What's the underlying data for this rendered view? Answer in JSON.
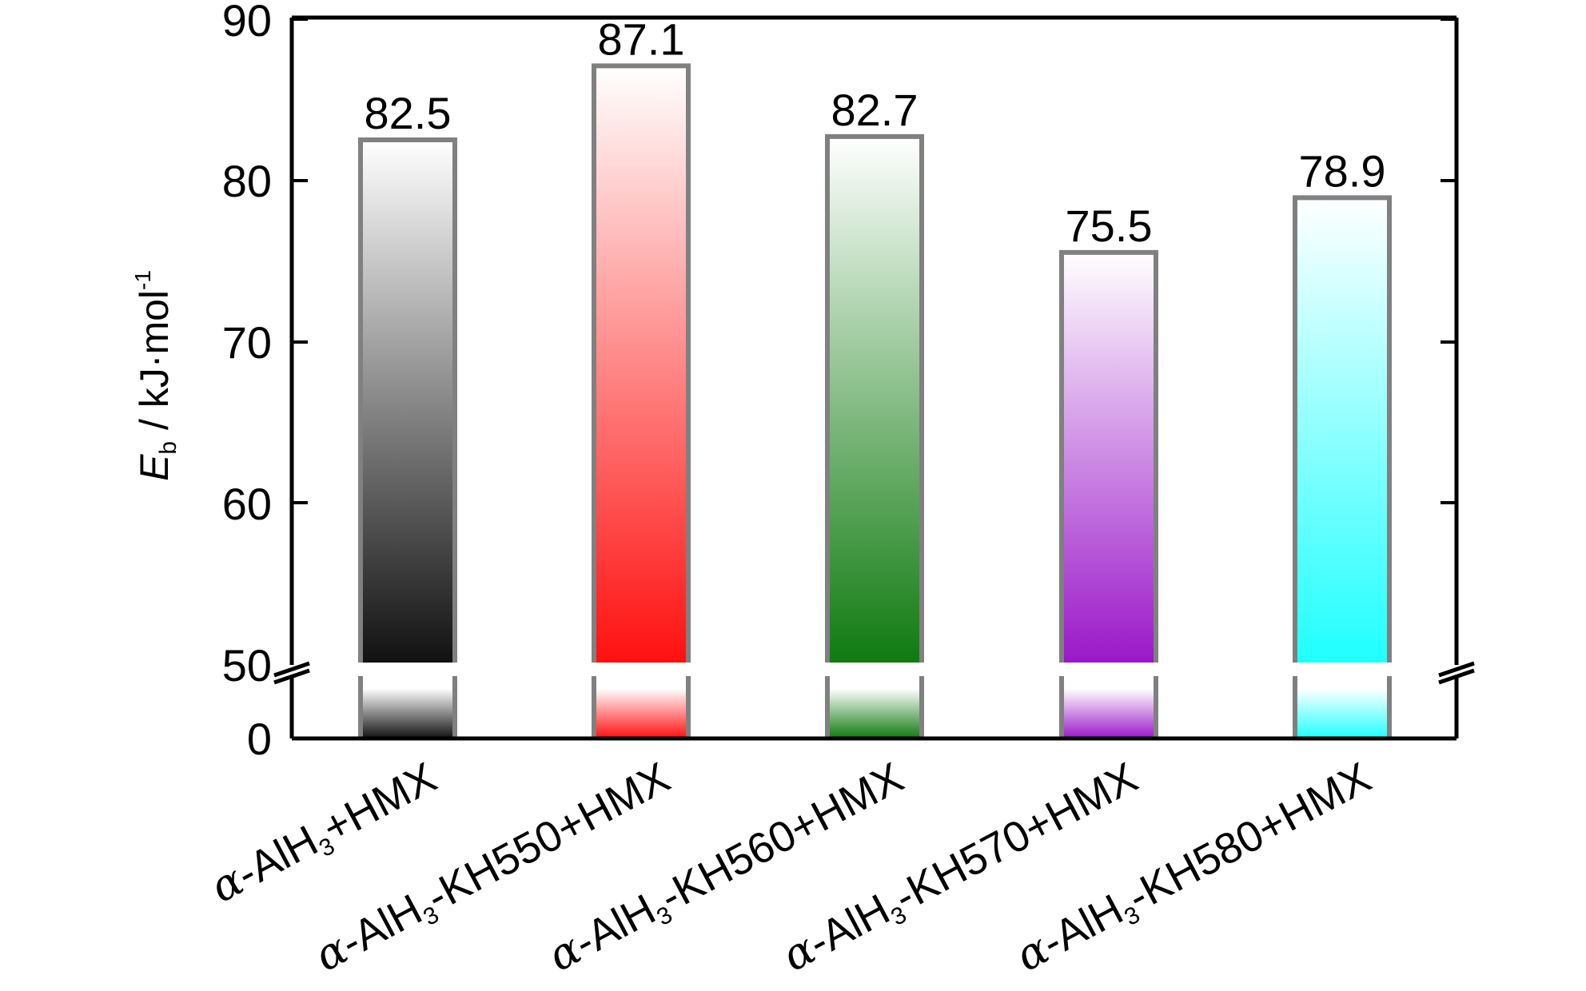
{
  "chart_data": {
    "type": "bar",
    "title": "",
    "xlabel": "",
    "ylabel": {
      "symbol": "E",
      "subscript": "b",
      "unit": " / kJ·mol",
      "unit_sup": "-1"
    },
    "ylim": [
      0,
      90
    ],
    "axis_break": {
      "from": 0,
      "to": 50
    },
    "y_ticks_upper": [
      50,
      60,
      70,
      80,
      90
    ],
    "y_ticks_lower": [
      0
    ],
    "tick_labels": {
      "t0": "0",
      "t50": "50",
      "t60": "60",
      "t70": "70",
      "t80": "80",
      "t90": "90"
    },
    "categories": [
      "α-AlH3+HMX",
      "α-AlH3-KH550+HMX",
      "α-AlH3-KH560+HMX",
      "α-AlH3-KH570+HMX",
      "α-AlH3-KH580+HMX"
    ],
    "category_parts": [
      {
        "greek": "α",
        "pre": "-AlH",
        "sub": "3",
        "post": "+HMX"
      },
      {
        "greek": "α",
        "pre": "-AlH",
        "sub": "3",
        "post": "-KH550+HMX"
      },
      {
        "greek": "α",
        "pre": "-AlH",
        "sub": "3",
        "post": "-KH560+HMX"
      },
      {
        "greek": "α",
        "pre": "-AlH",
        "sub": "3",
        "post": "-KH570+HMX"
      },
      {
        "greek": "α",
        "pre": "-AlH",
        "sub": "3",
        "post": "-KH580+HMX"
      }
    ],
    "values": [
      82.5,
      87.1,
      82.7,
      75.5,
      78.9
    ],
    "value_labels": [
      "82.5",
      "87.1",
      "82.7",
      "75.5",
      "78.9"
    ],
    "colors": [
      "#111111",
      "#ff1010",
      "#107a10",
      "#9a18c8",
      "#20ffff"
    ],
    "bar_outline_color": "#808080",
    "grid": false,
    "legend": "none"
  }
}
